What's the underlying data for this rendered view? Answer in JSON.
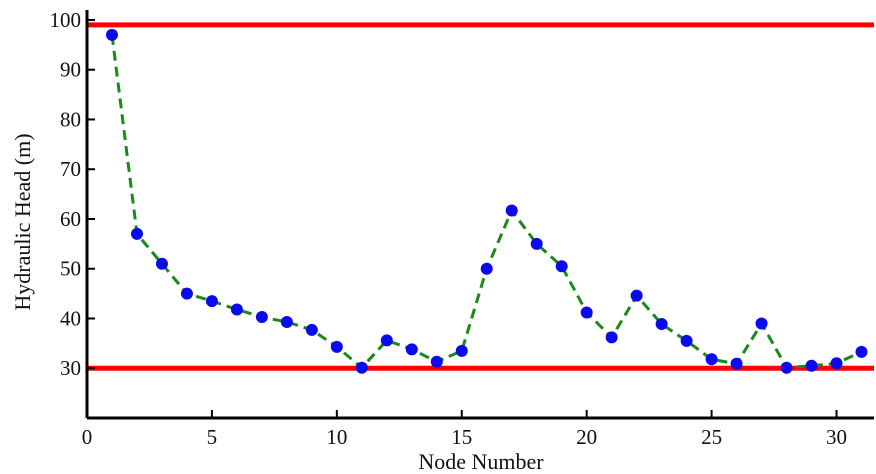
{
  "chart_data": {
    "type": "line",
    "xlabel": "Node Number",
    "ylabel": "Hydraulic Head (m)",
    "xlim": [
      0,
      31.5
    ],
    "ylim": [
      20,
      102
    ],
    "xticks": [
      0,
      5,
      10,
      15,
      20,
      25,
      30
    ],
    "yticks": [
      30,
      40,
      50,
      60,
      70,
      80,
      90,
      100
    ],
    "grid": false,
    "series": [
      {
        "line_style": "dashed",
        "line_color": "#1a8a1a",
        "marker_color": "#0a0aee",
        "x": [
          1,
          2,
          3,
          4,
          5,
          6,
          7,
          8,
          9,
          10,
          11,
          12,
          13,
          14,
          15,
          16,
          17,
          18,
          19,
          20,
          21,
          22,
          23,
          24,
          25,
          26,
          27,
          28,
          29,
          30,
          31
        ],
        "values": [
          97,
          57,
          51,
          45,
          43.5,
          41.8,
          40.3,
          39.3,
          37.7,
          34.3,
          30.1,
          35.6,
          33.8,
          31.3,
          33.5,
          50,
          61.7,
          55,
          50.5,
          41.2,
          36.2,
          44.6,
          38.9,
          35.5,
          31.8,
          30.9,
          39,
          30.1,
          30.5,
          31,
          33.3
        ]
      }
    ],
    "reference_lines": [
      {
        "y": 99,
        "color": "#ff0000"
      },
      {
        "y": 30,
        "color": "#ff0000"
      }
    ]
  }
}
